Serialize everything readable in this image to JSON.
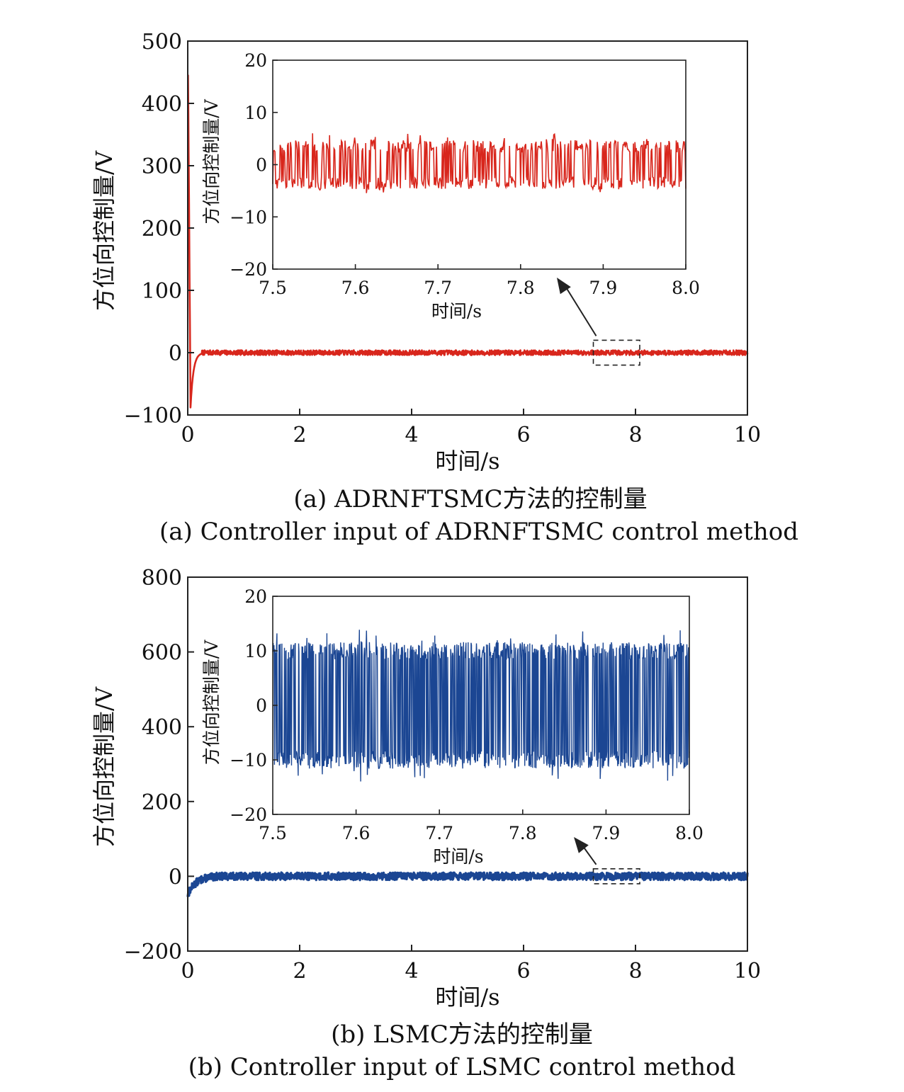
{
  "figure": {
    "captions": [
      {
        "cn": "(a) ADRNFTSMC方法的控制量",
        "en": "(a) Controller input of ADRNFTSMC control method"
      },
      {
        "cn": "(b) LSMC方法的控制量",
        "en": "(b) Controller input of LSMC control method"
      }
    ]
  },
  "colors": {
    "series_a": "#d8261c",
    "series_b": "#1b4693",
    "axes": "#222222"
  },
  "chart_data": [
    {
      "type": "line",
      "title": "",
      "xlabel": "时间/s",
      "ylabel": "方位向控制量/V",
      "xlim": [
        0,
        10
      ],
      "ylim": [
        -100,
        500
      ],
      "xticks": [
        0,
        2,
        4,
        6,
        8,
        10
      ],
      "yticks": [
        -100,
        0,
        100,
        200,
        300,
        400,
        500
      ],
      "xtick_labels": [
        "0",
        "2",
        "4",
        "6",
        "8",
        "10"
      ],
      "ytick_labels": [
        "−100",
        "0",
        "100",
        "200",
        "300",
        "400",
        "500"
      ],
      "grid": false,
      "legend": "none",
      "series": [
        {
          "color": "#d8261c",
          "initial_peak": 445,
          "initial_min": -88,
          "settle_time": 0.25,
          "steady_amplitude": 4
        }
      ],
      "highlight_box": {
        "x": [
          7.5,
          8.0
        ],
        "y": [
          -20,
          20
        ]
      },
      "inset": {
        "xlabel": "时间/s",
        "ylabel": "方位向控制量/V",
        "xlim": [
          7.5,
          8.0
        ],
        "ylim": [
          -20,
          20
        ],
        "xticks": [
          7.5,
          7.6,
          7.7,
          7.8,
          7.9,
          8.0
        ],
        "yticks": [
          -20,
          -10,
          0,
          10,
          20
        ],
        "xtick_labels": [
          "7.5",
          "7.6",
          "7.7",
          "7.8",
          "7.9",
          "8.0"
        ],
        "ytick_labels": [
          "−20",
          "−10",
          "0",
          "10",
          "20"
        ],
        "levels": [
          -3.5,
          3.5
        ],
        "spike_range": [
          -5.5,
          6
        ]
      }
    },
    {
      "type": "line",
      "title": "",
      "xlabel": "时间/s",
      "ylabel": "方位向控制量/V",
      "xlim": [
        0,
        10
      ],
      "ylim": [
        -200,
        800
      ],
      "xticks": [
        0,
        2,
        4,
        6,
        8,
        10
      ],
      "yticks": [
        -200,
        0,
        200,
        400,
        600,
        800
      ],
      "xtick_labels": [
        "0",
        "2",
        "4",
        "6",
        "8",
        "10"
      ],
      "ytick_labels": [
        "−200",
        "0",
        "200",
        "400",
        "600",
        "800"
      ],
      "grid": false,
      "legend": "none",
      "series": [
        {
          "color": "#1b4693",
          "initial_min": -50,
          "settle_time": 0.5,
          "steady_amplitude": 10
        }
      ],
      "highlight_box": {
        "x": [
          7.5,
          8.0
        ],
        "y": [
          -20,
          20
        ]
      },
      "inset": {
        "xlabel": "时间/s",
        "ylabel": "方位向控制量/V",
        "xlim": [
          7.5,
          8.0
        ],
        "ylim": [
          -20,
          20
        ],
        "xticks": [
          7.5,
          7.6,
          7.7,
          7.8,
          7.9,
          8.0
        ],
        "yticks": [
          -20,
          -10,
          0,
          10,
          20
        ],
        "xtick_labels": [
          "7.5",
          "7.6",
          "7.7",
          "7.8",
          "7.9",
          "8.0"
        ],
        "ytick_labels": [
          "−20",
          "−10",
          "0",
          "10",
          "20"
        ],
        "levels": [
          -10,
          10
        ],
        "spike_range": [
          -14,
          14
        ]
      }
    }
  ]
}
